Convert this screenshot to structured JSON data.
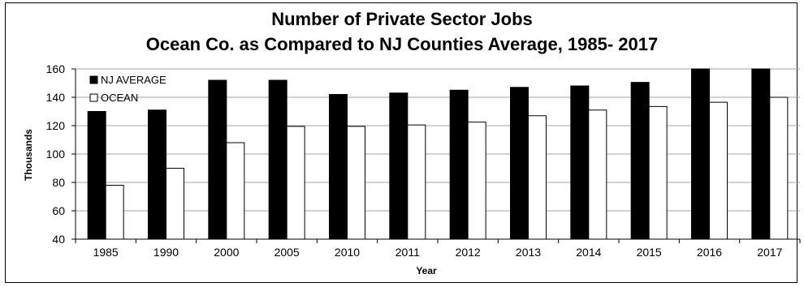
{
  "chart_data": {
    "type": "bar",
    "title": "Number of Private Sector Jobs",
    "subtitle": "Ocean Co. as Compared to NJ Counties Average, 1985- 2017",
    "xlabel": "Year",
    "ylabel": "Thousands",
    "ylim": [
      40,
      160
    ],
    "yticks": [
      40,
      60,
      80,
      100,
      120,
      140,
      160
    ],
    "grid": true,
    "legend_position": "top-left",
    "categories": [
      "1985",
      "1990",
      "2000",
      "2005",
      "2010",
      "2011",
      "2012",
      "2013",
      "2014",
      "2015",
      "2016",
      "2017"
    ],
    "series": [
      {
        "name": "NJ AVERAGE",
        "color": "#000000",
        "values": [
          130,
          131,
          152,
          152,
          142,
          143,
          145,
          147,
          148,
          150.5,
          160,
          160
        ]
      },
      {
        "name": "OCEAN",
        "color": "#ffffff",
        "values": [
          78,
          90,
          108,
          119.5,
          119.5,
          120.5,
          122.5,
          127,
          131,
          133.5,
          136.5,
          140
        ]
      }
    ]
  }
}
